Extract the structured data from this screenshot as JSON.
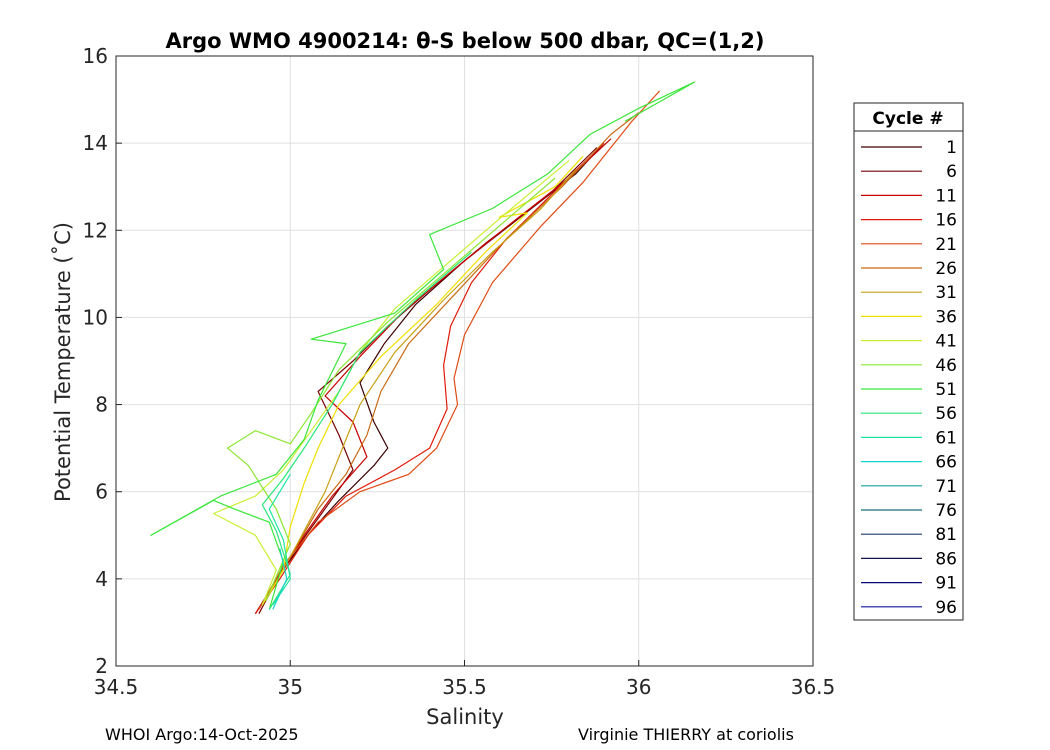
{
  "chart_data": {
    "type": "line",
    "title": "Argo WMO 4900214: θ-S below 500 dbar,  QC=(1,2)",
    "xlabel": "Salinity",
    "ylabel": "Potential Temperature (˚C)",
    "xlim": [
      34.5,
      36.5
    ],
    "ylim": [
      2,
      16
    ],
    "xticks": [
      34.5,
      35,
      35.5,
      36,
      36.5
    ],
    "xtick_labels": [
      "34.5",
      "35",
      "35.5",
      "36",
      "36.5"
    ],
    "yticks": [
      2,
      4,
      6,
      8,
      10,
      12,
      14,
      16
    ],
    "ytick_labels": [
      "2",
      "4",
      "6",
      "8",
      "10",
      "12",
      "14",
      "16"
    ],
    "grid": true,
    "legend": {
      "title": "Cycle #",
      "placement": "right outside",
      "entries": [
        {
          "label": "1",
          "color": "#3d0000"
        },
        {
          "label": "6",
          "color": "#7a0000"
        },
        {
          "label": "11",
          "color": "#c80000"
        },
        {
          "label": "16",
          "color": "#e01a0a"
        },
        {
          "label": "21",
          "color": "#e04a12"
        },
        {
          "label": "26",
          "color": "#c86a14"
        },
        {
          "label": "31",
          "color": "#c8a014"
        },
        {
          "label": "36",
          "color": "#f0e000"
        },
        {
          "label": "41",
          "color": "#c8f032"
        },
        {
          "label": "46",
          "color": "#8ce632"
        },
        {
          "label": "51",
          "color": "#3ce63c"
        },
        {
          "label": "56",
          "color": "#28e678"
        },
        {
          "label": "61",
          "color": "#1ee6a0"
        },
        {
          "label": "66",
          "color": "#14d2c8"
        },
        {
          "label": "71",
          "color": "#14a09a"
        },
        {
          "label": "76",
          "color": "#146e7a"
        },
        {
          "label": "81",
          "color": "#1e3c6e"
        },
        {
          "label": "86",
          "color": "#141450"
        },
        {
          "label": "91",
          "color": "#0a0a78"
        },
        {
          "label": "96",
          "color": "#1414a0"
        }
      ]
    },
    "series": [
      {
        "label": "1",
        "color": "#3d0000",
        "points": [
          [
            34.9,
            3.2
          ],
          [
            34.97,
            4.1
          ],
          [
            35.06,
            5.1
          ],
          [
            35.14,
            5.8
          ],
          [
            35.24,
            6.6
          ],
          [
            35.28,
            7.0
          ],
          [
            35.24,
            7.6
          ],
          [
            35.2,
            8.5
          ],
          [
            35.27,
            9.4
          ],
          [
            35.36,
            10.3
          ],
          [
            35.5,
            11.3
          ],
          [
            35.66,
            12.3
          ],
          [
            35.82,
            13.3
          ],
          [
            35.9,
            14.0
          ]
        ]
      },
      {
        "label": "6",
        "color": "#7a0000",
        "points": [
          [
            34.91,
            3.2
          ],
          [
            34.99,
            4.4
          ],
          [
            35.09,
            5.5
          ],
          [
            35.18,
            6.5
          ],
          [
            35.14,
            7.3
          ],
          [
            35.08,
            8.3
          ],
          [
            35.18,
            9.0
          ],
          [
            35.28,
            9.8
          ],
          [
            35.41,
            10.7
          ],
          [
            35.56,
            11.7
          ],
          [
            35.74,
            12.8
          ],
          [
            35.88,
            13.9
          ]
        ]
      },
      {
        "label": "11",
        "color": "#c80000",
        "points": [
          [
            34.9,
            3.2
          ],
          [
            34.98,
            4.2
          ],
          [
            35.04,
            5.0
          ],
          [
            35.12,
            5.9
          ],
          [
            35.22,
            6.8
          ],
          [
            35.18,
            7.6
          ],
          [
            35.1,
            8.2
          ],
          [
            35.2,
            9.1
          ],
          [
            35.32,
            10.1
          ],
          [
            35.47,
            11.1
          ],
          [
            35.64,
            12.2
          ],
          [
            35.8,
            13.2
          ],
          [
            35.92,
            14.1
          ]
        ]
      },
      {
        "label": "16",
        "color": "#e01a0a",
        "points": [
          [
            34.9,
            3.2
          ],
          [
            34.97,
            4.0
          ],
          [
            35.05,
            5.0
          ],
          [
            35.16,
            5.9
          ],
          [
            35.3,
            6.5
          ],
          [
            35.4,
            7.0
          ],
          [
            35.45,
            7.9
          ],
          [
            35.44,
            8.9
          ],
          [
            35.46,
            9.8
          ],
          [
            35.52,
            10.8
          ],
          [
            35.62,
            11.8
          ],
          [
            35.76,
            12.9
          ],
          [
            35.9,
            14.0
          ]
        ]
      },
      {
        "label": "21",
        "color": "#e04a12",
        "points": [
          [
            34.91,
            3.3
          ],
          [
            34.98,
            4.3
          ],
          [
            35.08,
            5.3
          ],
          [
            35.2,
            6.0
          ],
          [
            35.34,
            6.4
          ],
          [
            35.42,
            7.0
          ],
          [
            35.48,
            8.0
          ],
          [
            35.47,
            8.6
          ],
          [
            35.5,
            9.6
          ],
          [
            35.58,
            10.8
          ],
          [
            35.72,
            12.1
          ],
          [
            35.84,
            13.1
          ],
          [
            35.98,
            14.5
          ],
          [
            36.06,
            15.2
          ]
        ]
      },
      {
        "label": "26",
        "color": "#c86a14",
        "points": [
          [
            34.92,
            3.4
          ],
          [
            35.0,
            4.5
          ],
          [
            35.08,
            5.6
          ],
          [
            35.16,
            6.4
          ],
          [
            35.22,
            7.3
          ],
          [
            35.26,
            8.3
          ],
          [
            35.34,
            9.4
          ],
          [
            35.48,
            10.6
          ],
          [
            35.62,
            11.8
          ],
          [
            35.78,
            13.0
          ],
          [
            35.92,
            14.2
          ],
          [
            36.0,
            14.7
          ]
        ]
      },
      {
        "label": "31",
        "color": "#c8a014",
        "points": [
          [
            34.93,
            3.5
          ],
          [
            35.02,
            4.8
          ],
          [
            35.1,
            6.0
          ],
          [
            35.15,
            7.0
          ],
          [
            35.2,
            8.0
          ],
          [
            35.3,
            9.2
          ],
          [
            35.44,
            10.4
          ],
          [
            35.58,
            11.5
          ],
          [
            35.72,
            12.5
          ],
          [
            35.82,
            13.4
          ]
        ]
      },
      {
        "label": "36",
        "color": "#f0e000",
        "points": [
          [
            34.92,
            3.4
          ],
          [
            34.98,
            4.2
          ],
          [
            35.0,
            5.2
          ],
          [
            35.04,
            6.2
          ],
          [
            35.08,
            7.0
          ],
          [
            35.14,
            8.0
          ],
          [
            35.26,
            9.1
          ],
          [
            35.42,
            10.3
          ],
          [
            35.56,
            11.5
          ],
          [
            35.68,
            12.4
          ],
          [
            35.6,
            12.3
          ],
          [
            35.76,
            13.0
          ],
          [
            35.84,
            13.7
          ]
        ]
      },
      {
        "label": "41",
        "color": "#c8f032",
        "points": [
          [
            34.92,
            3.4
          ],
          [
            34.96,
            4.2
          ],
          [
            34.9,
            5.0
          ],
          [
            34.78,
            5.5
          ],
          [
            34.9,
            5.9
          ],
          [
            34.98,
            6.5
          ],
          [
            35.06,
            7.4
          ],
          [
            35.14,
            8.3
          ],
          [
            35.2,
            9.2
          ],
          [
            35.3,
            10.2
          ],
          [
            35.46,
            11.3
          ],
          [
            35.62,
            12.4
          ],
          [
            35.8,
            13.6
          ]
        ]
      },
      {
        "label": "46",
        "color": "#8ce632",
        "points": [
          [
            34.93,
            3.5
          ],
          [
            35.0,
            4.8
          ],
          [
            34.96,
            5.6
          ],
          [
            34.88,
            6.6
          ],
          [
            34.82,
            7.0
          ],
          [
            34.9,
            7.4
          ],
          [
            35.0,
            7.1
          ],
          [
            35.06,
            7.8
          ],
          [
            35.14,
            8.8
          ],
          [
            35.28,
            9.9
          ],
          [
            35.44,
            11.0
          ],
          [
            35.6,
            12.1
          ],
          [
            35.76,
            13.2
          ]
        ]
      },
      {
        "label": "51",
        "color": "#3ce63c",
        "points": [
          [
            34.94,
            3.3
          ],
          [
            34.98,
            4.4
          ],
          [
            34.94,
            5.3
          ],
          [
            34.84,
            5.6
          ],
          [
            34.78,
            5.8
          ],
          [
            34.6,
            5.0
          ],
          [
            34.8,
            5.9
          ],
          [
            34.96,
            6.4
          ],
          [
            35.04,
            7.2
          ],
          [
            35.08,
            8.1
          ],
          [
            35.16,
            9.4
          ],
          [
            35.06,
            9.5
          ],
          [
            35.3,
            10.1
          ],
          [
            35.44,
            11.1
          ],
          [
            35.4,
            11.9
          ],
          [
            35.58,
            12.5
          ],
          [
            35.74,
            13.3
          ],
          [
            35.86,
            14.2
          ],
          [
            36.0,
            14.8
          ],
          [
            36.16,
            15.4
          ],
          [
            35.96,
            14.5
          ]
        ]
      },
      {
        "label": "56",
        "color": "#28e678",
        "points": [
          [
            34.94,
            3.3
          ],
          [
            35.0,
            4.1
          ],
          [
            34.96,
            5.1
          ],
          [
            34.92,
            5.7
          ],
          [
            34.98,
            6.3
          ],
          [
            35.04,
            7.0
          ],
          [
            35.12,
            8.0
          ],
          [
            35.2,
            9.2
          ],
          [
            35.36,
            10.4
          ],
          [
            35.52,
            11.5
          ]
        ]
      },
      {
        "label": "61",
        "color": "#1ee6a0",
        "points": [
          [
            34.95,
            3.4
          ],
          [
            35.0,
            4.0
          ],
          [
            34.98,
            4.9
          ],
          [
            34.94,
            5.6
          ],
          [
            35.0,
            6.4
          ]
        ]
      },
      {
        "label": "66",
        "color": "#14d2c8",
        "points": [
          [
            34.95,
            3.3
          ],
          [
            34.99,
            4.0
          ],
          [
            34.97,
            4.7
          ]
        ]
      }
    ]
  },
  "footer": {
    "left": "WHOI Argo:14-Oct-2025",
    "right": "Virginie THIERRY at coriolis"
  }
}
